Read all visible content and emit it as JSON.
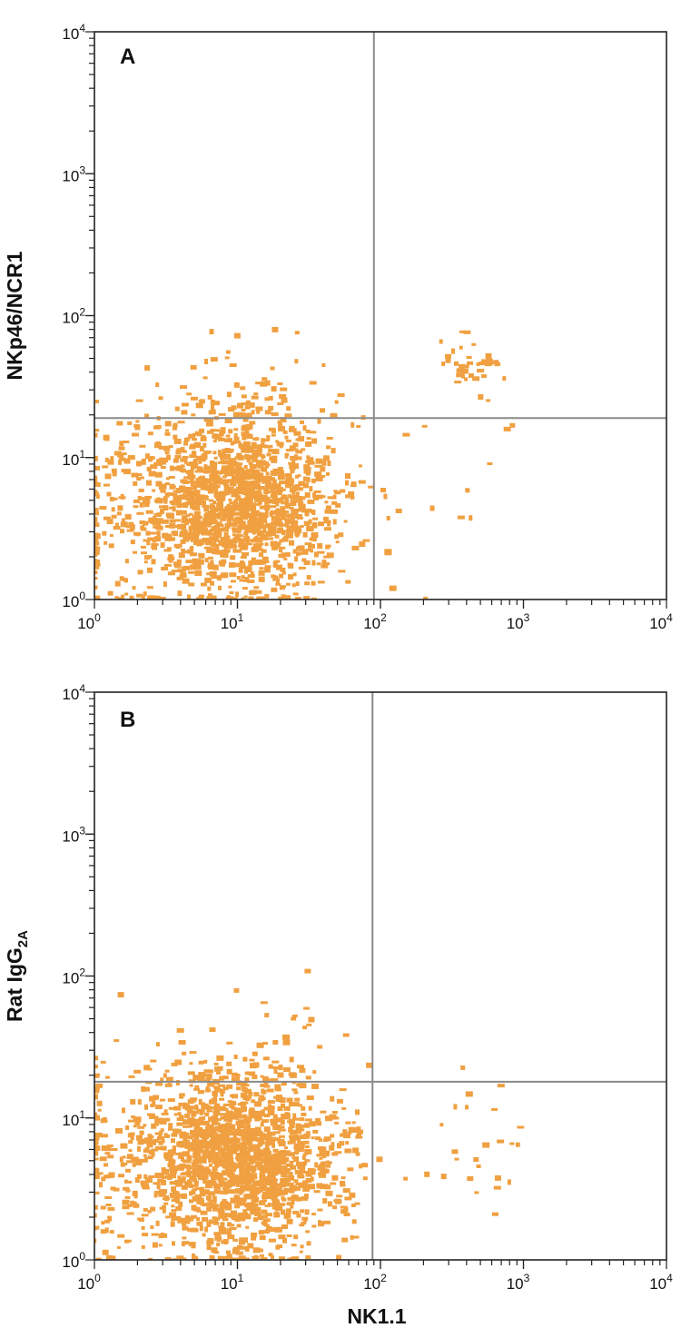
{
  "colors": {
    "dot": "#f0a040",
    "frame": "#222222",
    "gate": "#8a8a8a"
  },
  "chart_data": [
    {
      "type": "scatter",
      "panel": "A",
      "xlabel": "",
      "ylabel": "NKp46/NCR1",
      "xscale": "log",
      "yscale": "log",
      "xlim": [
        1,
        10000
      ],
      "ylim": [
        1,
        10000
      ],
      "x_ticks": [
        {
          "base": "10",
          "exp": "0"
        },
        {
          "base": "10",
          "exp": "1"
        },
        {
          "base": "10",
          "exp": "2"
        },
        {
          "base": "10",
          "exp": "3"
        },
        {
          "base": "10",
          "exp": "4"
        }
      ],
      "y_ticks": [
        {
          "base": "10",
          "exp": "0"
        },
        {
          "base": "10",
          "exp": "1"
        },
        {
          "base": "10",
          "exp": "2"
        },
        {
          "base": "10",
          "exp": "3"
        },
        {
          "base": "10",
          "exp": "4"
        }
      ],
      "quadrant_gate": {
        "x": 90,
        "y": 19
      },
      "populations": [
        {
          "center": [
            11,
            5
          ],
          "spread": [
            0.35,
            0.32
          ],
          "count": 1400
        },
        {
          "center": [
            3,
            4
          ],
          "spread": [
            0.4,
            0.35
          ],
          "count": 300
        },
        {
          "center": [
            12,
            35
          ],
          "spread": [
            0.3,
            0.18
          ],
          "count": 25
        },
        {
          "center": [
            450,
            45
          ],
          "spread": [
            0.12,
            0.1
          ],
          "count": 40
        },
        {
          "center": [
            400,
            6
          ],
          "spread": [
            0.25,
            0.35
          ],
          "count": 10
        }
      ]
    },
    {
      "type": "scatter",
      "panel": "B",
      "xlabel": "NK1.1",
      "ylabel": "Rat IgG",
      "ylabel_subscript": "2A",
      "xscale": "log",
      "yscale": "log",
      "xlim": [
        1,
        10000
      ],
      "ylim": [
        1,
        10000
      ],
      "x_ticks": [
        {
          "base": "10",
          "exp": "0"
        },
        {
          "base": "10",
          "exp": "1"
        },
        {
          "base": "10",
          "exp": "2"
        },
        {
          "base": "10",
          "exp": "3"
        },
        {
          "base": "10",
          "exp": "4"
        }
      ],
      "y_ticks": [
        {
          "base": "10",
          "exp": "0"
        },
        {
          "base": "10",
          "exp": "1"
        },
        {
          "base": "10",
          "exp": "2"
        },
        {
          "base": "10",
          "exp": "3"
        },
        {
          "base": "10",
          "exp": "4"
        }
      ],
      "quadrant_gate": {
        "x": 88,
        "y": 18
      },
      "populations": [
        {
          "center": [
            11,
            5
          ],
          "spread": [
            0.35,
            0.32
          ],
          "count": 1500
        },
        {
          "center": [
            3,
            5
          ],
          "spread": [
            0.4,
            0.35
          ],
          "count": 300
        },
        {
          "center": [
            15,
            40
          ],
          "spread": [
            0.35,
            0.25
          ],
          "count": 20
        },
        {
          "center": [
            500,
            6
          ],
          "spread": [
            0.18,
            0.25
          ],
          "count": 25
        }
      ]
    }
  ]
}
